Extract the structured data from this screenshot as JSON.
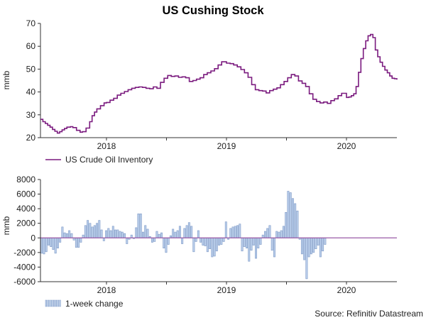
{
  "chart_title": "US Cushing Stock",
  "source": "Source: Refinitiv Datastream",
  "colors": {
    "line": "#7a1a7e",
    "bar_fill": "#bcd0ec",
    "bar_stroke": "#7a96c4",
    "zero_line": "#9a5aa6",
    "axis": "#333333",
    "background": "#ffffff"
  },
  "chart_data": [
    {
      "type": "line",
      "title": "US Cushing Stock",
      "xlabel": "",
      "ylabel": "mmb",
      "ylim": [
        20,
        70
      ],
      "yticks": [
        20,
        30,
        40,
        50,
        60,
        70
      ],
      "xlim": [
        2017.45,
        2020.42
      ],
      "xtick_labels": [
        "2018",
        "2019",
        "2020"
      ],
      "xtick_values": [
        2018.0,
        2019.0,
        2020.0
      ],
      "legend": "US Crude Oil Inventory",
      "series": [
        {
          "name": "US Crude Oil Inventory",
          "x": [
            2017.45,
            2017.47,
            2017.49,
            2017.51,
            2017.53,
            2017.55,
            2017.57,
            2017.59,
            2017.61,
            2017.63,
            2017.65,
            2017.67,
            2017.7,
            2017.72,
            2017.75,
            2017.78,
            2017.8,
            2017.83,
            2017.86,
            2017.88,
            2017.9,
            2017.92,
            2017.95,
            2017.98,
            2018.0,
            2018.03,
            2018.06,
            2018.09,
            2018.12,
            2018.15,
            2018.18,
            2018.21,
            2018.24,
            2018.27,
            2018.3,
            2018.33,
            2018.36,
            2018.39,
            2018.42,
            2018.45,
            2018.48,
            2018.51,
            2018.54,
            2018.57,
            2018.6,
            2018.63,
            2018.66,
            2018.69,
            2018.72,
            2018.75,
            2018.78,
            2018.81,
            2018.84,
            2018.87,
            2018.9,
            2018.93,
            2018.96,
            2019.0,
            2019.03,
            2019.06,
            2019.09,
            2019.12,
            2019.15,
            2019.18,
            2019.21,
            2019.24,
            2019.27,
            2019.3,
            2019.33,
            2019.36,
            2019.39,
            2019.42,
            2019.45,
            2019.48,
            2019.51,
            2019.54,
            2019.57,
            2019.6,
            2019.63,
            2019.66,
            2019.69,
            2019.72,
            2019.75,
            2019.78,
            2019.81,
            2019.84,
            2019.87,
            2019.9,
            2019.93,
            2019.96,
            2020.0,
            2020.02,
            2020.04,
            2020.06,
            2020.08,
            2020.1,
            2020.12,
            2020.14,
            2020.16,
            2020.18,
            2020.2,
            2020.22,
            2020.24,
            2020.26,
            2020.28,
            2020.3,
            2020.32,
            2020.34,
            2020.36,
            2020.38,
            2020.4,
            2020.42
          ],
          "values": [
            28.0,
            27.0,
            26.2,
            25.4,
            24.6,
            23.6,
            22.8,
            22.0,
            22.6,
            23.4,
            24.0,
            24.6,
            24.8,
            24.4,
            23.2,
            22.4,
            22.6,
            24.2,
            27.0,
            29.6,
            31.2,
            32.6,
            34.0,
            35.2,
            35.4,
            36.4,
            37.2,
            38.6,
            39.4,
            40.2,
            41.0,
            41.6,
            42.0,
            42.2,
            42.0,
            41.6,
            41.4,
            42.2,
            41.6,
            44.2,
            46.0,
            47.2,
            46.8,
            47.0,
            46.4,
            46.6,
            46.2,
            44.6,
            45.0,
            45.6,
            46.2,
            47.6,
            48.4,
            49.2,
            50.2,
            51.8,
            53.2,
            52.6,
            52.4,
            51.8,
            51.0,
            49.8,
            48.4,
            46.4,
            43.2,
            41.0,
            40.6,
            40.4,
            39.6,
            40.6,
            41.2,
            41.8,
            43.2,
            44.6,
            46.2,
            47.6,
            47.0,
            44.8,
            43.8,
            42.4,
            39.2,
            36.8,
            35.8,
            35.2,
            35.6,
            35.0,
            36.2,
            37.0,
            38.4,
            39.4,
            37.6,
            37.8,
            38.4,
            39.2,
            42.4,
            48.6,
            54.6,
            59.0,
            62.4,
            64.6,
            65.2,
            63.8,
            58.4,
            55.4,
            53.0,
            51.2,
            49.6,
            48.4,
            47.0,
            46.0,
            45.8,
            45.4
          ]
        }
      ]
    },
    {
      "type": "bar",
      "title": "",
      "xlabel": "",
      "ylabel": "mmb",
      "ylim": [
        -6000,
        8000
      ],
      "yticks": [
        -6000,
        -4000,
        -2000,
        0,
        2000,
        4000,
        6000,
        8000
      ],
      "xlim": [
        2017.45,
        2020.42
      ],
      "xtick_labels": [
        "2018",
        "2019",
        "2020"
      ],
      "xtick_values": [
        2018.0,
        2019.0,
        2020.0
      ],
      "legend": "1-week change",
      "series": [
        {
          "name": "1-week change",
          "start_x": 2017.46,
          "step": 0.0192,
          "values": [
            -2100,
            -2200,
            -1900,
            -1000,
            -1200,
            -1600,
            -2100,
            -1400,
            -600,
            1500,
            700,
            600,
            1000,
            600,
            -300,
            -1300,
            -1300,
            -600,
            400,
            1700,
            2400,
            2000,
            1500,
            1700,
            2000,
            2400,
            1100,
            -400,
            1000,
            1300,
            1000,
            1600,
            1100,
            1100,
            900,
            800,
            600,
            -800,
            -200,
            400,
            -100,
            1400,
            3300,
            3300,
            800,
            1700,
            1200,
            200,
            -600,
            -500,
            900,
            500,
            700,
            -1400,
            -2000,
            -900,
            300,
            1200,
            800,
            1000,
            1600,
            -800,
            1300,
            1700,
            2100,
            1600,
            -1900,
            -500,
            1000,
            -600,
            -1000,
            -1100,
            -1900,
            -1500,
            -2600,
            -2500,
            -1800,
            -1000,
            -900,
            -500,
            2200,
            -200,
            1300,
            1500,
            1600,
            1700,
            1900,
            -1800,
            -1200,
            -1400,
            -3200,
            -1700,
            -1000,
            -2800,
            -1400,
            -900,
            400,
            900,
            1300,
            1700,
            -1700,
            -2600,
            900,
            800,
            1000,
            1600,
            3500,
            6400,
            6200,
            5400,
            4700,
            3700,
            -200,
            -2200,
            -3000,
            -5600,
            -2600,
            -2200,
            -2000,
            -1500,
            -1000,
            -2600,
            -1800,
            -900
          ]
        }
      ]
    }
  ]
}
